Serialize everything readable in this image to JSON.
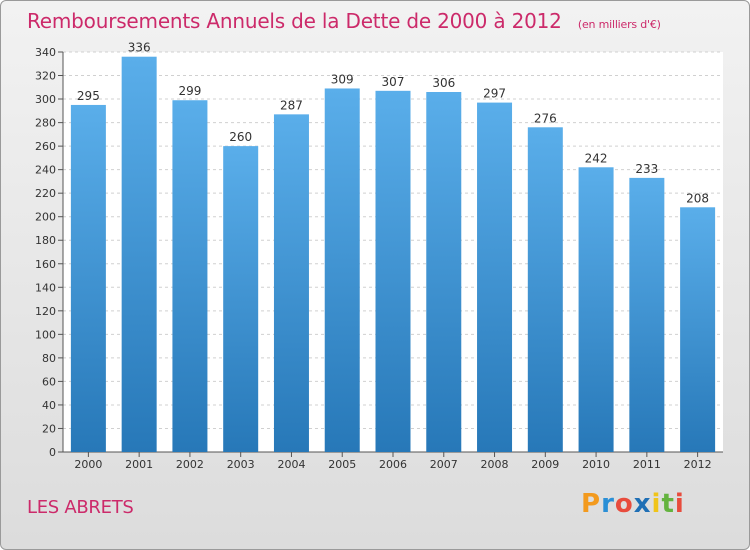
{
  "chart_data": {
    "type": "bar",
    "title": "Remboursements Annuels de la Dette de 2000 à 2012",
    "subtitle": "(en milliers d'€)",
    "categories": [
      "2000",
      "2001",
      "2002",
      "2003",
      "2004",
      "2005",
      "2006",
      "2007",
      "2008",
      "2009",
      "2010",
      "2011",
      "2012"
    ],
    "values": [
      295,
      336,
      299,
      260,
      287,
      309,
      307,
      306,
      297,
      276,
      242,
      233,
      208
    ],
    "ylim": [
      0,
      340
    ],
    "yticks": [
      0,
      20,
      40,
      60,
      80,
      100,
      120,
      140,
      160,
      180,
      200,
      220,
      240,
      260,
      280,
      300,
      320,
      340
    ],
    "xlabel": "",
    "ylabel": "",
    "grid": true,
    "bar_color_top": "#5aaeea",
    "bar_color_bottom": "#2778b8"
  },
  "footer": {
    "location": "LES ABRETS"
  },
  "logo": {
    "letters": [
      "P",
      "r",
      "o",
      "x",
      "i",
      "t",
      "i"
    ],
    "colors": [
      "#f39a1e",
      "#2a8fd6",
      "#e84c3d",
      "#1f6fb5",
      "#f0c419",
      "#64b33f",
      "#e84c3d"
    ]
  }
}
